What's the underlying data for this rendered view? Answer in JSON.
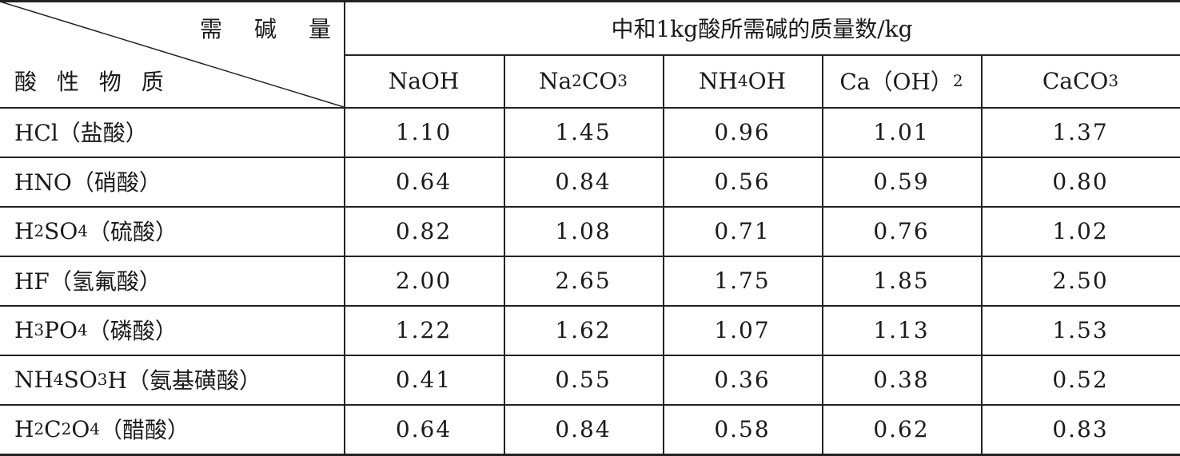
{
  "table": {
    "corner": {
      "top": "需　碱　量",
      "bottom": "酸 性 物 质"
    },
    "group_header": "中和1kg酸所需碱的质量数/kg",
    "columns": [
      "NaOH",
      "Na2CO3",
      "NH4OH",
      "Ca（OH）2",
      "CaCO3"
    ],
    "rows": [
      {
        "label": "HCl（盐酸）",
        "values": [
          "1.10",
          "1.45",
          "0.96",
          "1.01",
          "1.37"
        ]
      },
      {
        "label": "HNO（硝酸）",
        "values": [
          "0.64",
          "0.84",
          "0.56",
          "0.59",
          "0.80"
        ]
      },
      {
        "label": "H2SO4（硫酸）",
        "values": [
          "0.82",
          "1.08",
          "0.71",
          "0.76",
          "1.02"
        ]
      },
      {
        "label": "HF（氢氟酸）",
        "values": [
          "2.00",
          "2.65",
          "1.75",
          "1.85",
          "2.50"
        ]
      },
      {
        "label": "H3PO4（磷酸）",
        "values": [
          "1.22",
          "1.62",
          "1.07",
          "1.13",
          "1.53"
        ]
      },
      {
        "label": "NH4SO3H（氨基磺酸）",
        "values": [
          "0.41",
          "0.55",
          "0.36",
          "0.38",
          "0.52"
        ]
      },
      {
        "label": "H2C2O4（醋酸）",
        "values": [
          "0.64",
          "0.84",
          "0.58",
          "0.62",
          "0.83"
        ]
      }
    ]
  }
}
